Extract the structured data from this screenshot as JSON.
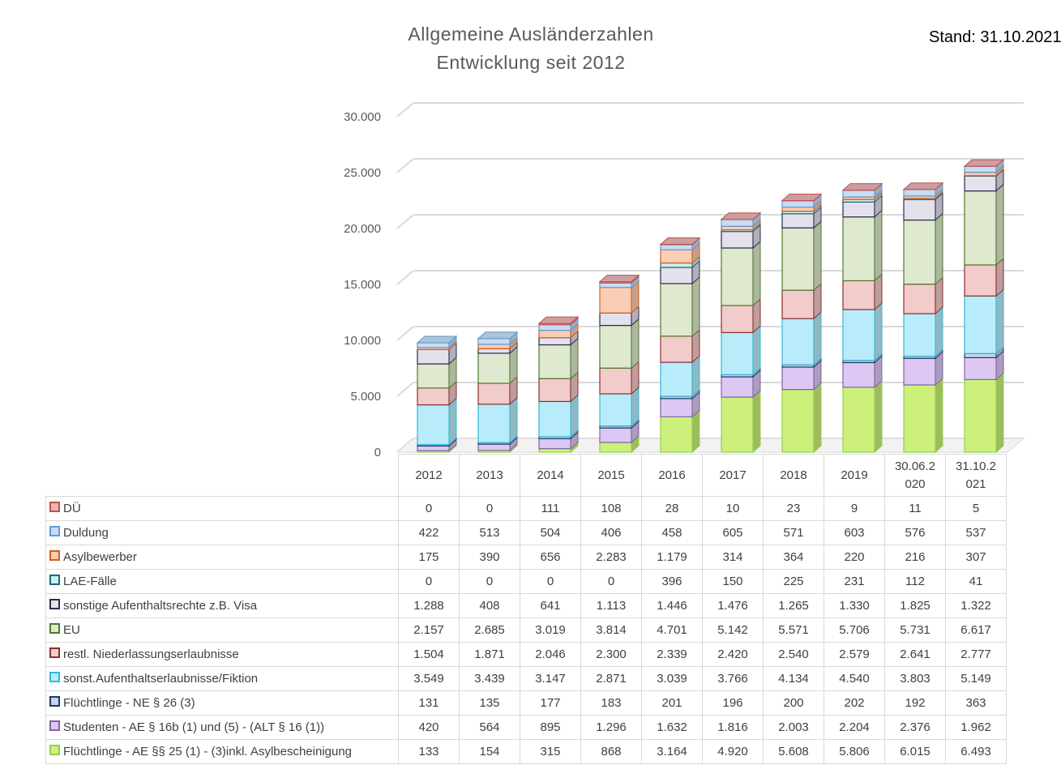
{
  "header": {
    "title_line1": "Allgemeine  Ausländerzahlen",
    "title_line2": "Entwicklung  seit 2012",
    "stand": "Stand: 31.10.2021"
  },
  "chart_data": {
    "type": "bar",
    "stacked": true,
    "style": "3d-column",
    "title": "Allgemeine  Ausländerzahlen Entwicklung  seit 2012",
    "categories": [
      "2012",
      "2013",
      "2014",
      "2015",
      "2016",
      "2017",
      "2018",
      "2019",
      "30.06.2020",
      "31.10.2021"
    ],
    "category_labels": [
      [
        "2012"
      ],
      [
        "2013"
      ],
      [
        "2014"
      ],
      [
        "2015"
      ],
      [
        "2016"
      ],
      [
        "2017"
      ],
      [
        "2018"
      ],
      [
        "2019"
      ],
      [
        "30.06.2",
        "020"
      ],
      [
        "31.10.2",
        "021"
      ]
    ],
    "ylim": [
      0,
      30000
    ],
    "yticks": [
      0,
      5000,
      10000,
      15000,
      20000,
      25000,
      30000
    ],
    "ytick_labels": [
      "0",
      "5.000",
      "10.000",
      "15.000",
      "20.000",
      "25.000",
      "30.000"
    ],
    "grid": true,
    "legend": "data-table",
    "series": [
      {
        "name": "Flüchtlinge -  AE §§ 25 (1) - (3)inkl. Asylbescheinigung",
        "color": "#ccf07a",
        "border": "#92d050",
        "values": [
          133,
          154,
          315,
          868,
          3164,
          4920,
          5608,
          5806,
          6015,
          6493
        ],
        "labels": [
          "133",
          "154",
          "315",
          "868",
          "3.164",
          "4.920",
          "5.608",
          "5.806",
          "6.015",
          "6.493"
        ]
      },
      {
        "name": "Studenten - AE § 16b (1) und (5) - (ALT § 16 (1))",
        "color": "#dcc8f2",
        "border": "#8064a2",
        "values": [
          420,
          564,
          895,
          1296,
          1632,
          1816,
          2003,
          2204,
          2376,
          1962
        ],
        "labels": [
          "420",
          "564",
          "895",
          "1.296",
          "1.632",
          "1.816",
          "2.003",
          "2.204",
          "2.376",
          "1.962"
        ]
      },
      {
        "name": "Flüchtlinge - NE § 26 (3)",
        "color": "#c6d4ec",
        "border": "#1f3864",
        "values": [
          131,
          135,
          177,
          183,
          201,
          196,
          200,
          202,
          192,
          363
        ],
        "labels": [
          "131",
          "135",
          "177",
          "183",
          "201",
          "196",
          "200",
          "202",
          "192",
          "363"
        ]
      },
      {
        "name": "sonst.Aufenthaltserlaubnisse/Fiktion",
        "color": "#b9ecfa",
        "border": "#31b8d6",
        "values": [
          3549,
          3439,
          3147,
          2871,
          3039,
          3766,
          4134,
          4540,
          3803,
          5149
        ],
        "labels": [
          "3.549",
          "3.439",
          "3.147",
          "2.871",
          "3.039",
          "3.766",
          "4.134",
          "4.540",
          "3.803",
          "5.149"
        ]
      },
      {
        "name": "restl. Niederlassungserlaubnisse",
        "color": "#f2cbcb",
        "border": "#8b2f2f",
        "values": [
          1504,
          1871,
          2046,
          2300,
          2339,
          2420,
          2540,
          2579,
          2641,
          2777
        ],
        "labels": [
          "1.504",
          "1.871",
          "2.046",
          "2.300",
          "2.339",
          "2.420",
          "2.540",
          "2.579",
          "2.641",
          "2.777"
        ]
      },
      {
        "name": "EU",
        "color": "#dfe9cf",
        "border": "#4f7a28",
        "values": [
          2157,
          2685,
          3019,
          3814,
          4701,
          5142,
          5571,
          5706,
          5731,
          6617
        ],
        "labels": [
          "2.157",
          "2.685",
          "3.019",
          "3.814",
          "4.701",
          "5.142",
          "5.571",
          "5.706",
          "5.731",
          "6.617"
        ]
      },
      {
        "name": "sonstige Aufenthaltsrechte z.B. Visa",
        "color": "#e3e1ec",
        "border": "#2e2a4f",
        "values": [
          1288,
          408,
          641,
          1113,
          1446,
          1476,
          1265,
          1330,
          1825,
          1322
        ],
        "labels": [
          "1.288",
          "408",
          "641",
          "1.113",
          "1.446",
          "1.476",
          "1.265",
          "1.330",
          "1.825",
          "1.322"
        ]
      },
      {
        "name": "LAE-Fälle",
        "color": "#d0eef3",
        "border": "#1a6a78",
        "values": [
          0,
          0,
          0,
          0,
          396,
          150,
          225,
          231,
          112,
          41
        ],
        "labels": [
          "0",
          "0",
          "0",
          "0",
          "396",
          "150",
          "225",
          "231",
          "112",
          "41"
        ]
      },
      {
        "name": "Asylbewerber",
        "color": "#fbcdb4",
        "border": "#d0601a",
        "values": [
          175,
          390,
          656,
          2283,
          1179,
          314,
          364,
          220,
          216,
          307
        ],
        "labels": [
          "175",
          "390",
          "656",
          "2.283",
          "1.179",
          "314",
          "364",
          "220",
          "216",
          "307"
        ]
      },
      {
        "name": "Duldung",
        "color": "#c8dcf5",
        "border": "#5b9bd5",
        "values": [
          422,
          513,
          504,
          406,
          458,
          605,
          571,
          603,
          576,
          537
        ],
        "labels": [
          "422",
          "513",
          "504",
          "406",
          "458",
          "605",
          "571",
          "603",
          "576",
          "537"
        ]
      },
      {
        "name": "DÜ",
        "color": "#e8b4b4",
        "border": "#c0504d",
        "values": [
          0,
          0,
          111,
          108,
          28,
          10,
          23,
          9,
          11,
          5
        ],
        "labels": [
          "0",
          "0",
          "111",
          "108",
          "28",
          "10",
          "23",
          "9",
          "11",
          "5"
        ]
      }
    ]
  }
}
